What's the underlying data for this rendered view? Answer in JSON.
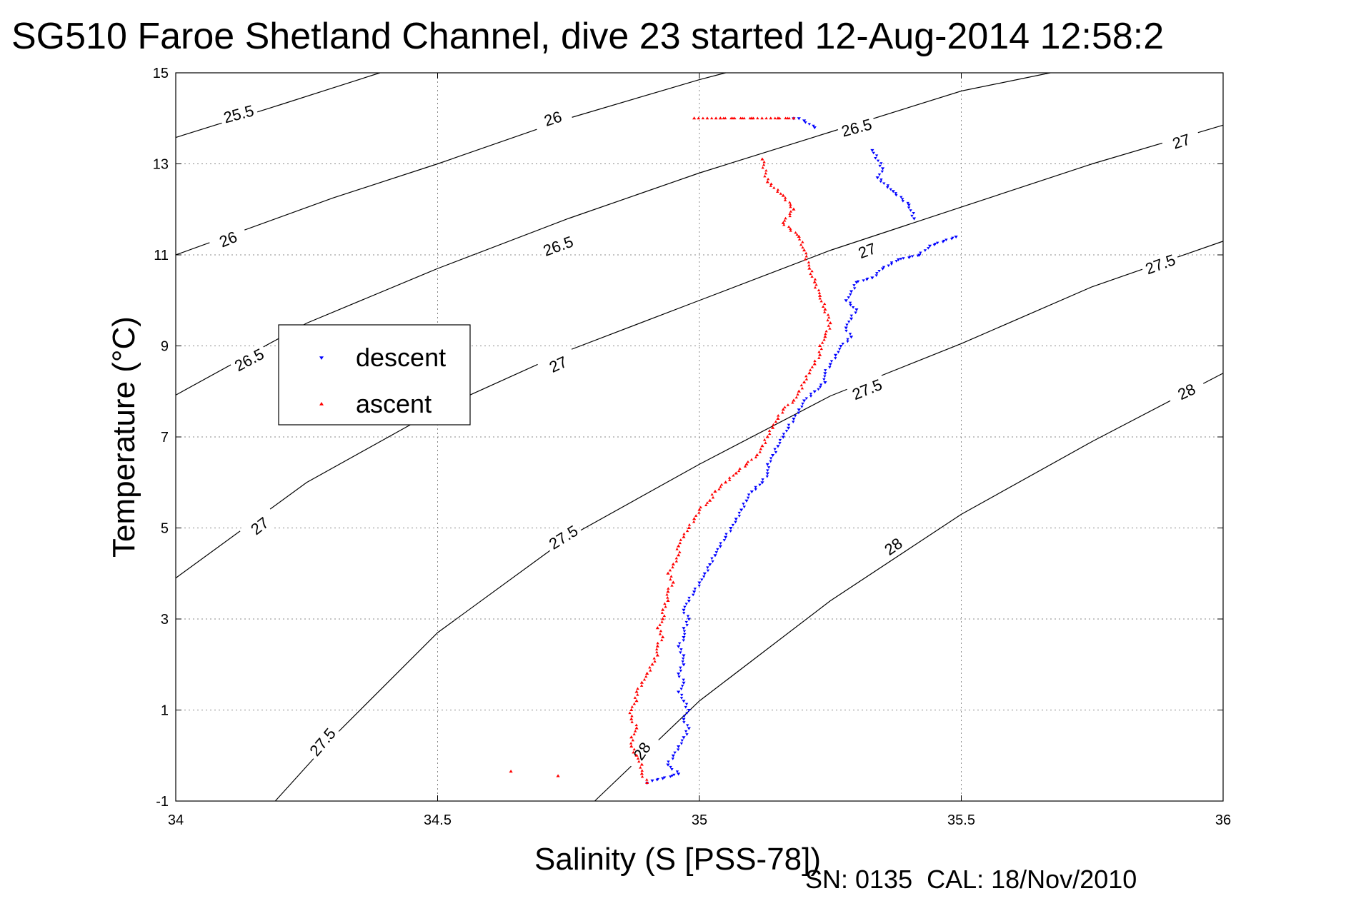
{
  "title": "SG510 Faroe Shetland Channel, dive 23 started 12-Aug-2014 12:58:2",
  "footer": "SN: 0135  CAL: 18/Nov/2010",
  "chart_data": {
    "type": "scatter",
    "xlabel": "Salinity (S [PSS-78])",
    "ylabel": "Temperature (°C)",
    "xlim": [
      34,
      36
    ],
    "ylim": [
      -1,
      15
    ],
    "xticks": [
      "34",
      "34.5",
      "35",
      "35.5",
      "36"
    ],
    "xtick_values": [
      34,
      34.5,
      35,
      35.5,
      36
    ],
    "yticks": [
      "-1",
      "1",
      "3",
      "5",
      "7",
      "9",
      "11",
      "13",
      "15"
    ],
    "ytick_values": [
      -1,
      1,
      3,
      5,
      7,
      9,
      11,
      13,
      15
    ],
    "grid": true,
    "legend_position": "left",
    "series": [
      {
        "name": "descent",
        "color": "#0000ff",
        "marker": "triangle-down",
        "points": [
          [
            35.18,
            14.0
          ],
          [
            35.19,
            14.0
          ],
          [
            35.2,
            13.95
          ],
          [
            35.22,
            13.8
          ],
          [
            35.33,
            13.3
          ],
          [
            35.35,
            12.9
          ],
          [
            35.34,
            12.7
          ],
          [
            35.37,
            12.4
          ],
          [
            35.4,
            12.1
          ],
          [
            35.41,
            11.8
          ],
          [
            35.49,
            11.4
          ],
          [
            35.44,
            11.2
          ],
          [
            35.42,
            11.0
          ],
          [
            35.38,
            10.9
          ],
          [
            35.35,
            10.7
          ],
          [
            35.33,
            10.5
          ],
          [
            35.3,
            10.4
          ],
          [
            35.29,
            10.2
          ],
          [
            35.28,
            10.0
          ],
          [
            35.3,
            9.8
          ],
          [
            35.29,
            9.6
          ],
          [
            35.28,
            9.4
          ],
          [
            35.29,
            9.2
          ],
          [
            35.27,
            9.0
          ],
          [
            35.26,
            8.8
          ],
          [
            35.25,
            8.6
          ],
          [
            35.24,
            8.4
          ],
          [
            35.24,
            8.2
          ],
          [
            35.22,
            8.0
          ],
          [
            35.2,
            7.8
          ],
          [
            35.19,
            7.6
          ],
          [
            35.18,
            7.4
          ],
          [
            35.17,
            7.2
          ],
          [
            35.16,
            7.0
          ],
          [
            35.15,
            6.8
          ],
          [
            35.14,
            6.6
          ],
          [
            35.13,
            6.4
          ],
          [
            35.13,
            6.2
          ],
          [
            35.12,
            6.0
          ],
          [
            35.1,
            5.8
          ],
          [
            35.09,
            5.6
          ],
          [
            35.08,
            5.4
          ],
          [
            35.07,
            5.2
          ],
          [
            35.06,
            5.0
          ],
          [
            35.05,
            4.8
          ],
          [
            35.04,
            4.6
          ],
          [
            35.03,
            4.4
          ],
          [
            35.02,
            4.2
          ],
          [
            35.01,
            4.0
          ],
          [
            35.0,
            3.8
          ],
          [
            34.99,
            3.6
          ],
          [
            34.98,
            3.4
          ],
          [
            34.97,
            3.2
          ],
          [
            34.98,
            3.0
          ],
          [
            34.97,
            2.8
          ],
          [
            34.97,
            2.6
          ],
          [
            34.96,
            2.4
          ],
          [
            34.97,
            2.2
          ],
          [
            34.97,
            2.0
          ],
          [
            34.96,
            1.8
          ],
          [
            34.97,
            1.6
          ],
          [
            34.96,
            1.4
          ],
          [
            34.97,
            1.2
          ],
          [
            34.98,
            1.0
          ],
          [
            34.97,
            0.8
          ],
          [
            34.98,
            0.6
          ],
          [
            34.97,
            0.4
          ],
          [
            34.96,
            0.2
          ],
          [
            34.95,
            0.0
          ],
          [
            34.94,
            -0.2
          ],
          [
            34.96,
            -0.4
          ],
          [
            34.93,
            -0.5
          ],
          [
            34.91,
            -0.55
          ],
          [
            34.9,
            -0.6
          ]
        ]
      },
      {
        "name": "ascent",
        "color": "#ff0000",
        "marker": "triangle-up",
        "points": [
          [
            34.99,
            14.0
          ],
          [
            35.04,
            14.0
          ],
          [
            35.1,
            14.0
          ],
          [
            35.15,
            14.0
          ],
          [
            35.18,
            14.0
          ],
          [
            35.12,
            13.1
          ],
          [
            35.13,
            12.6
          ],
          [
            35.16,
            12.3
          ],
          [
            35.18,
            12.0
          ],
          [
            35.16,
            11.7
          ],
          [
            35.19,
            11.4
          ],
          [
            35.2,
            11.1
          ],
          [
            35.21,
            10.7
          ],
          [
            35.22,
            10.4
          ],
          [
            35.23,
            10.1
          ],
          [
            35.24,
            9.8
          ],
          [
            35.25,
            9.5
          ],
          [
            35.24,
            9.2
          ],
          [
            35.23,
            9.0
          ],
          [
            35.23,
            8.8
          ],
          [
            35.22,
            8.6
          ],
          [
            35.21,
            8.4
          ],
          [
            35.2,
            8.2
          ],
          [
            35.19,
            8.0
          ],
          [
            35.18,
            7.8
          ],
          [
            35.16,
            7.6
          ],
          [
            35.15,
            7.4
          ],
          [
            35.14,
            7.2
          ],
          [
            35.13,
            7.0
          ],
          [
            35.12,
            6.8
          ],
          [
            35.11,
            6.6
          ],
          [
            35.09,
            6.4
          ],
          [
            35.07,
            6.2
          ],
          [
            35.05,
            6.0
          ],
          [
            35.03,
            5.8
          ],
          [
            35.02,
            5.6
          ],
          [
            35.0,
            5.4
          ],
          [
            34.99,
            5.2
          ],
          [
            34.98,
            5.0
          ],
          [
            34.97,
            4.8
          ],
          [
            34.96,
            4.6
          ],
          [
            34.96,
            4.4
          ],
          [
            34.95,
            4.2
          ],
          [
            34.94,
            4.0
          ],
          [
            34.95,
            3.8
          ],
          [
            34.94,
            3.6
          ],
          [
            34.94,
            3.4
          ],
          [
            34.93,
            3.2
          ],
          [
            34.93,
            3.0
          ],
          [
            34.92,
            2.8
          ],
          [
            34.93,
            2.6
          ],
          [
            34.92,
            2.4
          ],
          [
            34.92,
            2.2
          ],
          [
            34.91,
            2.0
          ],
          [
            34.9,
            1.8
          ],
          [
            34.89,
            1.6
          ],
          [
            34.88,
            1.4
          ],
          [
            34.88,
            1.2
          ],
          [
            34.87,
            1.0
          ],
          [
            34.87,
            0.8
          ],
          [
            34.88,
            0.6
          ],
          [
            34.87,
            0.4
          ],
          [
            34.87,
            0.2
          ],
          [
            34.88,
            0.0
          ],
          [
            34.89,
            -0.2
          ],
          [
            34.89,
            -0.4
          ],
          [
            34.9,
            -0.6
          ],
          [
            34.64,
            -0.35
          ],
          [
            34.73,
            -0.45
          ]
        ]
      }
    ],
    "contours": [
      {
        "sigma": "25.5",
        "points": [
          [
            34.0,
            13.58
          ],
          [
            34.2,
            14.3
          ],
          [
            34.39,
            15.0
          ]
        ]
      },
      {
        "sigma": "26",
        "points": [
          [
            34.0,
            11.0
          ],
          [
            34.3,
            12.25
          ],
          [
            34.5,
            13.0
          ],
          [
            34.75,
            14.0
          ],
          [
            35.0,
            14.85
          ],
          [
            35.05,
            15.0
          ]
        ]
      },
      {
        "sigma": "26.5",
        "points": [
          [
            34.0,
            7.92
          ],
          [
            34.25,
            9.5
          ],
          [
            34.5,
            10.7
          ],
          [
            34.75,
            11.8
          ],
          [
            35.0,
            12.8
          ],
          [
            35.25,
            13.7
          ],
          [
            35.5,
            14.6
          ],
          [
            35.67,
            15.0
          ]
        ]
      },
      {
        "sigma": "27",
        "points": [
          [
            34.0,
            3.9
          ],
          [
            34.25,
            6.0
          ],
          [
            34.5,
            7.6
          ],
          [
            34.75,
            8.9
          ],
          [
            35.0,
            10.0
          ],
          [
            35.25,
            11.1
          ],
          [
            35.5,
            12.05
          ],
          [
            35.75,
            13.0
          ],
          [
            36.0,
            13.85
          ]
        ]
      },
      {
        "sigma": "27.5",
        "points": [
          [
            34.19,
            -1.0
          ],
          [
            34.3,
            0.4
          ],
          [
            34.5,
            2.7
          ],
          [
            34.75,
            4.8
          ],
          [
            35.0,
            6.4
          ],
          [
            35.25,
            7.9
          ],
          [
            35.5,
            9.05
          ],
          [
            35.75,
            10.3
          ],
          [
            36.0,
            11.3
          ]
        ]
      },
      {
        "sigma": "28",
        "points": [
          [
            34.8,
            -1.0
          ],
          [
            35.0,
            1.2
          ],
          [
            35.25,
            3.4
          ],
          [
            35.5,
            5.3
          ],
          [
            35.75,
            6.9
          ],
          [
            36.0,
            8.4
          ]
        ]
      }
    ],
    "contour_labels": [
      {
        "text": "25.5",
        "s": 34.12,
        "t": 14.1,
        "angle": -15
      },
      {
        "text": "26",
        "s": 34.72,
        "t": 14.0,
        "angle": -18
      },
      {
        "text": "26.5",
        "s": 35.3,
        "t": 13.8,
        "angle": -15
      },
      {
        "text": "27",
        "s": 35.92,
        "t": 13.5,
        "angle": -18
      },
      {
        "text": "26",
        "s": 34.1,
        "t": 11.35,
        "angle": -22
      },
      {
        "text": "26.5",
        "s": 34.73,
        "t": 11.2,
        "angle": -20
      },
      {
        "text": "27",
        "s": 35.32,
        "t": 11.1,
        "angle": -20
      },
      {
        "text": "27.5",
        "s": 35.88,
        "t": 10.8,
        "angle": -20
      },
      {
        "text": "26.5",
        "s": 34.14,
        "t": 8.7,
        "angle": -28
      },
      {
        "text": "27",
        "s": 34.73,
        "t": 8.6,
        "angle": -25
      },
      {
        "text": "27.5",
        "s": 35.32,
        "t": 8.05,
        "angle": -22
      },
      {
        "text": "28",
        "s": 35.93,
        "t": 8.0,
        "angle": -25
      },
      {
        "text": "27",
        "s": 34.16,
        "t": 5.05,
        "angle": -38
      },
      {
        "text": "27.5",
        "s": 34.74,
        "t": 4.8,
        "angle": -32
      },
      {
        "text": "28",
        "s": 35.37,
        "t": 4.6,
        "angle": -35
      },
      {
        "text": "27.5",
        "s": 34.28,
        "t": 0.3,
        "angle": -50
      },
      {
        "text": "28",
        "s": 34.89,
        "t": 0.1,
        "angle": -55
      }
    ]
  }
}
